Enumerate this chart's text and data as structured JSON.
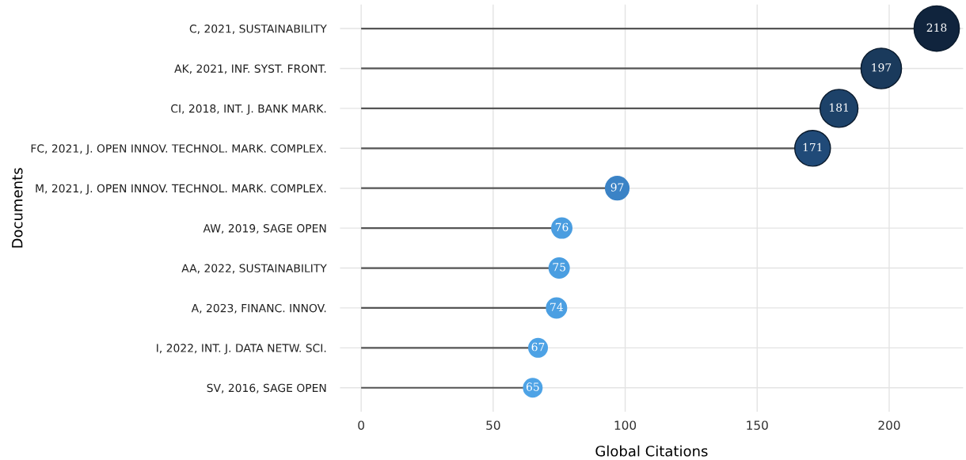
{
  "chart_data": {
    "type": "lollipop",
    "orientation": "horizontal",
    "xlabel": "Global Citations",
    "ylabel": "Documents",
    "categories": [
      "C, 2021, SUSTAINABILITY",
      "AK, 2021, INF. SYST. FRONT.",
      "CI, 2018, INT. J. BANK MARK.",
      "FC, 2021, J. OPEN INNOV. TECHNOL. MARK. COMPLEX.",
      "M, 2021, J. OPEN INNOV. TECHNOL. MARK. COMPLEX.",
      "AW, 2019, SAGE OPEN",
      "AA, 2022, SUSTAINABILITY",
      "A, 2023, FINANC. INNOV.",
      "I, 2022, INT. J. DATA NETW. SCI.",
      "SV, 2016, SAGE OPEN"
    ],
    "values": [
      218,
      197,
      181,
      171,
      97,
      76,
      75,
      74,
      67,
      65
    ],
    "sizes": [
      1,
      0.8,
      0.7,
      0.62,
      0.27,
      0.2,
      0.2,
      0.2,
      0.17,
      0.17
    ],
    "colors": [
      "#10243d",
      "#1a3a5c",
      "#1d4269",
      "#204a78",
      "#3b83c6",
      "#4a9de0",
      "#4a9ee1",
      "#4b9fe2",
      "#4da2e5",
      "#4ea3e6"
    ],
    "xlim": [
      -8,
      228
    ],
    "xticks": [
      0,
      50,
      100,
      150,
      200
    ],
    "grid": true,
    "data_labels": true
  }
}
